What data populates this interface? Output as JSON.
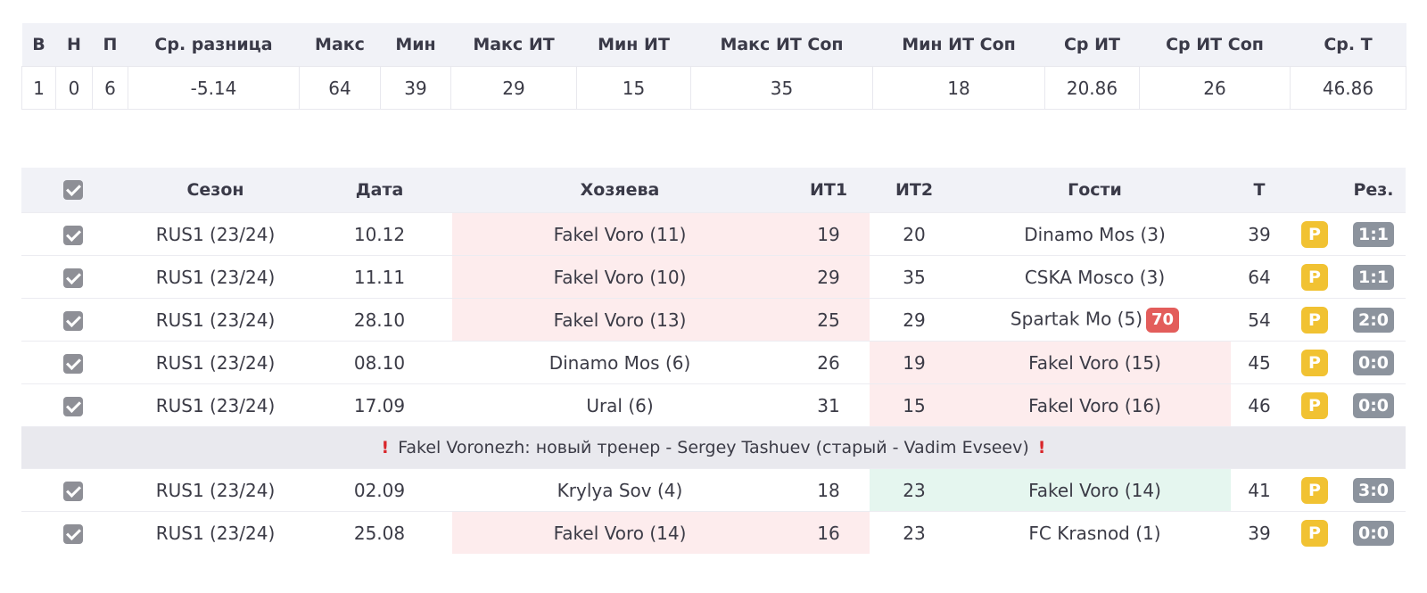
{
  "summary": {
    "headers": [
      "В",
      "Н",
      "П",
      "Ср. разница",
      "Макс",
      "Мин",
      "Макс ИТ",
      "Мин ИТ",
      "Макс ИТ Соп",
      "Мин ИТ Соп",
      "Ср ИТ",
      "Ср ИТ Соп",
      "Ср. Т"
    ],
    "values": [
      "1",
      "0",
      "6",
      "-5.14",
      "64",
      "39",
      "29",
      "15",
      "35",
      "18",
      "20.86",
      "26",
      "46.86"
    ]
  },
  "games": {
    "headers": {
      "season": "Сезон",
      "date": "Дата",
      "home": "Хозяева",
      "it1": "ИТ1",
      "it2": "ИТ2",
      "away": "Гости",
      "total": "Т",
      "result": "Рез."
    },
    "p_label": "P",
    "rows": [
      {
        "season": "RUS1 (23/24)",
        "date": "10.12",
        "home": "Fakel Voro (11)",
        "it1": "19",
        "it2": "20",
        "away": "Dinamo Mos (3)",
        "total": "39",
        "result": "1:1"
      },
      {
        "season": "RUS1 (23/24)",
        "date": "11.11",
        "home": "Fakel Voro (10)",
        "it1": "29",
        "it2": "35",
        "away": "CSKA Mosco (3)",
        "total": "64",
        "result": "1:1"
      },
      {
        "season": "RUS1 (23/24)",
        "date": "28.10",
        "home": "Fakel Voro (13)",
        "it1": "25",
        "it2": "29",
        "away": "Spartak Mo (5)",
        "away_badge": "70",
        "total": "54",
        "result": "2:0"
      },
      {
        "season": "RUS1 (23/24)",
        "date": "08.10",
        "home": "Dinamo Mos (6)",
        "it1": "26",
        "it2": "19",
        "away": "Fakel Voro (15)",
        "total": "45",
        "result": "0:0"
      },
      {
        "season": "RUS1 (23/24)",
        "date": "17.09",
        "home": "Ural (6)",
        "it1": "31",
        "it2": "15",
        "away": "Fakel Voro (16)",
        "total": "46",
        "result": "0:0"
      },
      {
        "season": "RUS1 (23/24)",
        "date": "02.09",
        "home": "Krylya Sov (4)",
        "it1": "18",
        "it2": "23",
        "away": "Fakel Voro (14)",
        "total": "41",
        "result": "3:0"
      },
      {
        "season": "RUS1 (23/24)",
        "date": "25.08",
        "home": "Fakel Voro (14)",
        "it1": "16",
        "it2": "23",
        "away": "FC Krasnod (1)",
        "total": "39",
        "result": "0:0"
      }
    ],
    "note": "Fakel Voronezh: новый тренер - Sergey Tashuev (старый - Vadim Evseev)"
  },
  "colors": {
    "header_bg": "#f1f2f7",
    "loss_highlight": "#fdeced",
    "win_highlight": "#e5f6ef",
    "p_badge": "#f1c232",
    "result_badge": "#8c939d",
    "red_badge": "#e35d5b",
    "note_bg": "#e9e9ee",
    "exclamation": "#d9262b"
  },
  "icons": {
    "checkbox": "checked-checkbox-icon",
    "note_marker": "exclamation-icon"
  }
}
